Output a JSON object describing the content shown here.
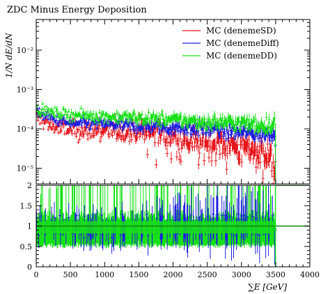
{
  "chart_data": [
    {
      "panel": "main",
      "type": "line",
      "title": "ZDC Minus Energy Deposition",
      "xlabel": "",
      "ylabel": "1/N dE/dN",
      "yscale": "log",
      "xlim": [
        0,
        4000
      ],
      "ylim": [
        4e-06,
        0.06
      ],
      "x_ticks": [
        0,
        500,
        1000,
        1500,
        2000,
        2500,
        3000,
        3500,
        4000
      ],
      "y_ticks": [
        {
          "value": 1e-05,
          "label": "10⁻⁵"
        },
        {
          "value": 0.0001,
          "label": "10⁻⁴"
        },
        {
          "value": 0.001,
          "label": "10⁻³"
        },
        {
          "value": 0.01,
          "label": "10⁻²"
        }
      ],
      "legend_position": "top-right",
      "series": [
        {
          "name": "MC (denemeSD)",
          "color": "#e8161c",
          "x": [
            25,
            250,
            500,
            750,
            1000,
            1250,
            1500,
            1750,
            2000,
            2250,
            2500,
            2750,
            3000,
            3250,
            3400,
            3490,
            3510
          ],
          "values": [
            0.00018,
            0.00011,
            9e-05,
            8.5e-05,
            9e-05,
            8e-05,
            8e-05,
            7.5e-05,
            6e-05,
            5e-05,
            4e-05,
            4e-05,
            3e-05,
            2.5e-05,
            2e-05,
            1e-05,
            3e-06
          ]
        },
        {
          "name": "MC (denemeDiff)",
          "color": "#1f1fe0",
          "x": [
            25,
            250,
            500,
            750,
            1000,
            1250,
            1500,
            1750,
            2000,
            2250,
            2500,
            2750,
            3000,
            3250,
            3400,
            3490,
            3510
          ],
          "values": [
            0.00025,
            0.00017,
            0.00013,
            0.00013,
            0.00013,
            0.00012,
            0.00011,
            0.00011,
            0.0001,
            0.0001,
            9.5e-05,
            8.5e-05,
            8e-05,
            7e-05,
            7e-05,
            9e-05,
            3e-06
          ]
        },
        {
          "name": "MC (denemeDD)",
          "color": "#18e018",
          "x": [
            25,
            250,
            500,
            750,
            1000,
            1250,
            1500,
            1750,
            2000,
            2250,
            2500,
            2750,
            3000,
            3250,
            3400,
            3490,
            3510
          ],
          "values": [
            0.0003,
            0.00025,
            0.00022,
            0.00021,
            0.0002,
            0.00019,
            0.00018,
            0.00017,
            0.00016,
            0.00015,
            0.00014,
            0.00014,
            0.00013,
            0.00012,
            0.00012,
            0.00014,
            3e-06
          ]
        }
      ]
    },
    {
      "panel": "ratio",
      "type": "line",
      "xlabel": "∑E [GeV]",
      "ylabel": "",
      "xlim": [
        0,
        4000
      ],
      "ylim": [
        0,
        2
      ],
      "x_ticks": [
        0,
        500,
        1000,
        1500,
        2000,
        2500,
        3000,
        3500,
        4000
      ],
      "x_tick_labels": [
        "0",
        "500",
        "1000",
        "1500",
        "2000",
        "2500",
        "3000",
        "3500",
        "4000"
      ],
      "y_ticks": [
        0,
        0.5,
        1,
        1.5,
        2
      ],
      "y_tick_labels": [
        "0",
        "0.5",
        "1",
        "1.5",
        "2"
      ],
      "series": [
        {
          "name": "MC (denemeDiff)",
          "color": "#1f1fe0",
          "x": [
            25,
            500,
            1000,
            1500,
            2000,
            2500,
            3000,
            3400,
            3500,
            4000
          ],
          "values": [
            1.3,
            1.4,
            1.45,
            1.4,
            1.6,
            1.8,
            1.9,
            2.0,
            1.0,
            1.0
          ]
        },
        {
          "name": "MC (denemeDD)",
          "color": "#18e018",
          "x": [
            25,
            500,
            1000,
            1500,
            2000,
            2500,
            3000,
            3400,
            3500,
            4000
          ],
          "values": [
            1.7,
            2.0,
            2.0,
            2.0,
            2.0,
            2.0,
            2.0,
            2.0,
            1.0,
            1.0
          ]
        }
      ]
    }
  ]
}
